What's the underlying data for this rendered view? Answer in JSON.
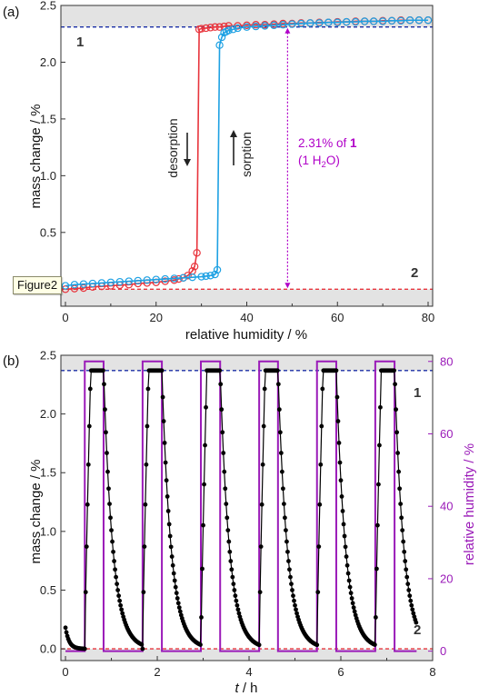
{
  "tooltip": "Figure2",
  "chart_data": [
    {
      "panel_label": "(a)",
      "type": "line",
      "xlabel": "relative humidity / %",
      "ylabel": "mass change / %",
      "xlim": [
        -1,
        81
      ],
      "ylim": [
        -0.15,
        2.5
      ],
      "xticks": [
        0,
        20,
        40,
        60,
        80
      ],
      "yticks": [
        0.5,
        1.0,
        1.5,
        2.0,
        2.5
      ],
      "colors": {
        "desorption": "#e8343c",
        "sorption": "#1ea1e3",
        "band": "#e3e3e3",
        "ref_top": "#1b2fa6",
        "ref_bottom": "#e8343c",
        "annotation": "#b000c8"
      },
      "reference_lines": [
        {
          "label": "1",
          "y": 2.31,
          "color_key": "ref_top"
        },
        {
          "label": "2",
          "y": 0.0,
          "color_key": "ref_bottom"
        }
      ],
      "series": [
        {
          "key": "desorption",
          "x": [
            0,
            2,
            4,
            6,
            8,
            10,
            12,
            14,
            16,
            18,
            20,
            22,
            24,
            25,
            26,
            27,
            28,
            28.5,
            29,
            29.5,
            30,
            31,
            32,
            33,
            34,
            35,
            36,
            38,
            40,
            42,
            44,
            46,
            48,
            50,
            52,
            54,
            56,
            58,
            60,
            62,
            64,
            66,
            68,
            70,
            72,
            74,
            76,
            78,
            80
          ],
          "y": [
            0.0,
            0.005,
            0.01,
            0.02,
            0.025,
            0.03,
            0.035,
            0.04,
            0.05,
            0.055,
            0.06,
            0.07,
            0.08,
            0.09,
            0.1,
            0.12,
            0.16,
            0.2,
            0.32,
            2.29,
            2.295,
            2.3,
            2.305,
            2.31,
            2.31,
            2.315,
            2.32,
            2.32,
            2.325,
            2.33,
            2.33,
            2.335,
            2.34,
            2.34,
            2.345,
            2.345,
            2.35,
            2.35,
            2.355,
            2.355,
            2.36,
            2.36,
            2.36,
            2.365,
            2.365,
            2.37,
            2.37,
            2.37,
            2.37
          ]
        },
        {
          "key": "sorption",
          "x": [
            0,
            2,
            4,
            6,
            8,
            10,
            12,
            14,
            16,
            18,
            20,
            22,
            24,
            26,
            28,
            30,
            31,
            32,
            33,
            33.5,
            34,
            34.5,
            35,
            35.5,
            36,
            37,
            38,
            40,
            42,
            44,
            46,
            48,
            50,
            52,
            54,
            56,
            58,
            60,
            62,
            64,
            66,
            68,
            70,
            72,
            74,
            76,
            78,
            80
          ],
          "y": [
            0.03,
            0.04,
            0.045,
            0.05,
            0.055,
            0.06,
            0.065,
            0.07,
            0.075,
            0.08,
            0.085,
            0.09,
            0.095,
            0.1,
            0.105,
            0.11,
            0.115,
            0.12,
            0.13,
            0.17,
            2.15,
            2.22,
            2.26,
            2.27,
            2.28,
            2.29,
            2.3,
            2.31,
            2.315,
            2.32,
            2.325,
            2.33,
            2.335,
            2.34,
            2.345,
            2.345,
            2.35,
            2.35,
            2.355,
            2.355,
            2.36,
            2.36,
            2.36,
            2.365,
            2.365,
            2.37,
            2.37,
            2.37
          ]
        }
      ],
      "annotations": {
        "desorption": "desorption",
        "sorption": "sorption",
        "value_line1_prefix": "2.31% of ",
        "value_line1_bold": "1",
        "value_line2_a": "(1 H",
        "value_line2_sub": "2",
        "value_line2_b": "O)"
      }
    },
    {
      "panel_label": "(b)",
      "type": "line",
      "xlabel_italic": "t",
      "xlabel_rest": " / h",
      "ylabel": "mass change / %",
      "y2label": "relative humidity / %",
      "xlim": [
        -0.1,
        8
      ],
      "ylim": [
        -0.1,
        2.5
      ],
      "y2lim": [
        -2.6,
        81.7
      ],
      "xticks": [
        0,
        2,
        4,
        6,
        8
      ],
      "yticks": [
        0.0,
        0.5,
        1.0,
        1.5,
        2.0,
        2.5
      ],
      "y2ticks": [
        0,
        20,
        40,
        60,
        80
      ],
      "colors": {
        "mass": "#000000",
        "humidity": "#9a1ab8",
        "band": "#e3e3e3",
        "ref_top": "#1b2fa6",
        "ref_bottom": "#e8343c"
      },
      "reference_lines": [
        {
          "label": "1",
          "y": 2.37,
          "color_key": "ref_top"
        },
        {
          "label": "2",
          "y": 0.0,
          "color_key": "ref_bottom"
        }
      ],
      "humidity_profile": {
        "levels": [
          0,
          80
        ],
        "high_intervals": [
          [
            0.42,
            0.83
          ],
          [
            1.68,
            2.1
          ],
          [
            2.95,
            3.37
          ],
          [
            4.22,
            4.63
          ],
          [
            5.48,
            5.9
          ],
          [
            6.75,
            7.17
          ]
        ],
        "x_end": 7.65
      },
      "mass_profile": {
        "initial": 0.18,
        "plateau": 2.37,
        "floor": 0.0,
        "decay_time_constant_h": 0.11,
        "rise_duration_h": 0.13,
        "x_end": 7.65,
        "step_h": 0.02
      }
    }
  ]
}
